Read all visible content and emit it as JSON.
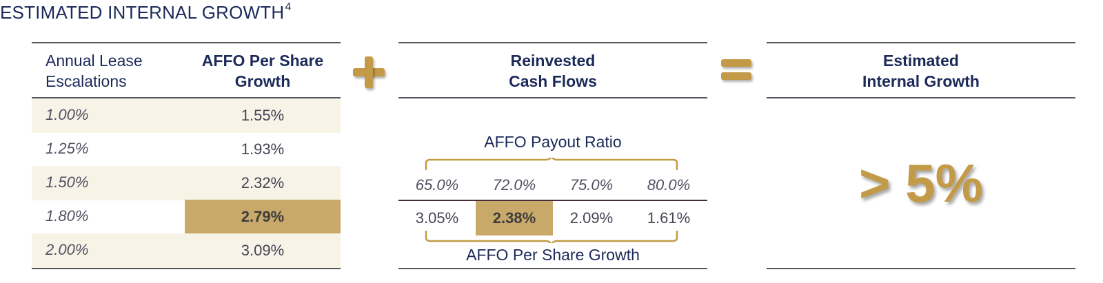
{
  "title": {
    "text": "ESTIMATED INTERNAL GROWTH",
    "superscript": "4"
  },
  "left_table": {
    "header_left_line1": "Annual Lease",
    "header_left_line2": "Escalations",
    "header_right_line1": "AFFO Per Share",
    "header_right_line2": "Growth",
    "rows": [
      {
        "escalation": "1.00%",
        "growth": "1.55%",
        "highlight": false
      },
      {
        "escalation": "1.25%",
        "growth": "1.93%",
        "highlight": false
      },
      {
        "escalation": "1.50%",
        "growth": "2.32%",
        "highlight": false
      },
      {
        "escalation": "1.80%",
        "growth": "2.79%",
        "highlight": true
      },
      {
        "escalation": "2.00%",
        "growth": "3.09%",
        "highlight": false
      }
    ]
  },
  "middle": {
    "header_line1": "Reinvested",
    "header_line2": "Cash Flows",
    "payout_label": "AFFO Payout Ratio",
    "payout_ratios": [
      "65.0%",
      "72.0%",
      "75.0%",
      "80.0%"
    ],
    "growth_values": [
      "3.05%",
      "2.38%",
      "2.09%",
      "1.61%"
    ],
    "highlight_index": 1,
    "growth_label": "AFFO Per Share Growth"
  },
  "right": {
    "header_line1": "Estimated",
    "header_line2": "Internal Growth",
    "value": "> 5%"
  },
  "colors": {
    "navy": "#1c2a5a",
    "gold": "#c39a47",
    "highlight": "#c9a96a",
    "shade": "#f7f3e7"
  }
}
